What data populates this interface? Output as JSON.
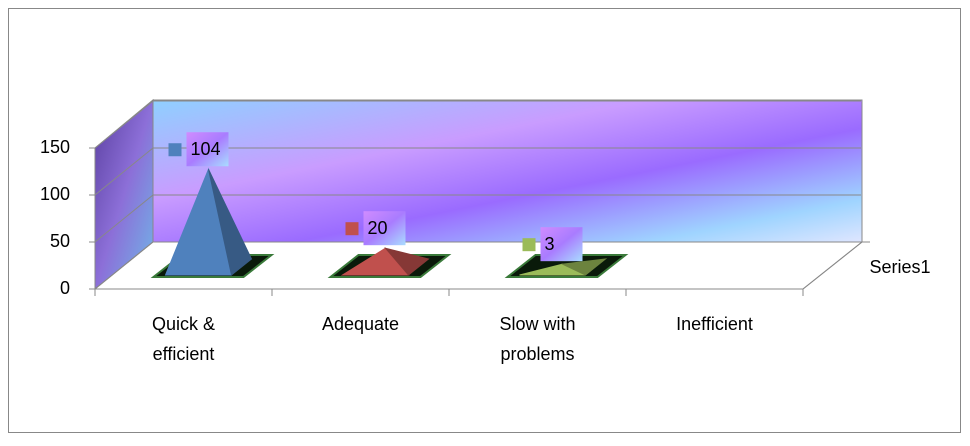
{
  "chart_data": {
    "type": "pyramid",
    "categories": [
      "Quick & efficient",
      "Adequate",
      "Slow with problems",
      "Inefficient"
    ],
    "series": [
      {
        "name": "Series1",
        "values": [
          104,
          20,
          3,
          null
        ],
        "colors": [
          "#4f81bd",
          "#c0504d",
          "#9bbb59",
          "#8064a2"
        ]
      }
    ],
    "ylim": [
      0,
      150
    ],
    "yticks": [
      0,
      50,
      100,
      150
    ],
    "grid": true
  }
}
